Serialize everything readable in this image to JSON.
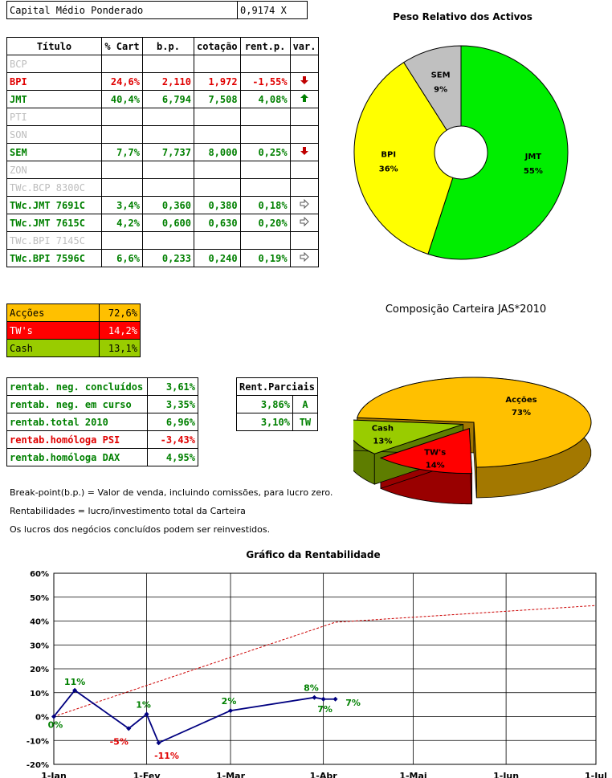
{
  "capital": {
    "label": "Capital Médio Ponderado",
    "value": "0,9174 X"
  },
  "portfolio": {
    "headers": [
      "Título",
      "% Cart",
      "b.p.",
      "cotação",
      "rent.p.",
      "var."
    ],
    "rows": [
      {
        "name": "BCP",
        "state": "inactive",
        "cart": "",
        "bp": "",
        "cot": "",
        "rent": "",
        "var": ""
      },
      {
        "name": "BPI",
        "state": "red",
        "cart": "24,6%",
        "bp": "2,110",
        "cot": "1,972",
        "rent": "-1,55%",
        "var": "down-arrow"
      },
      {
        "name": "JMT",
        "state": "green",
        "cart": "40,4%",
        "bp": "6,794",
        "cot": "7,508",
        "rent": "4,08%",
        "var": "up-arrow"
      },
      {
        "name": "PTI",
        "state": "inactive",
        "cart": "",
        "bp": "",
        "cot": "",
        "rent": "",
        "var": ""
      },
      {
        "name": "SON",
        "state": "inactive",
        "cart": "",
        "bp": "",
        "cot": "",
        "rent": "",
        "var": ""
      },
      {
        "name": "SEM",
        "state": "green",
        "cart": "7,7%",
        "bp": "7,737",
        "cot": "8,000",
        "rent": "0,25%",
        "var": "down-arrow"
      },
      {
        "name": "ZON",
        "state": "inactive",
        "cart": "",
        "bp": "",
        "cot": "",
        "rent": "",
        "var": ""
      },
      {
        "name": "TWc.BCP 8300C",
        "state": "inactive",
        "cart": "",
        "bp": "",
        "cot": "",
        "rent": "",
        "var": ""
      },
      {
        "name": "TWc.JMT 7691C",
        "state": "green",
        "cart": "3,4%",
        "bp": "0,360",
        "cot": "0,380",
        "rent": "0,18%",
        "var": "right-arrow"
      },
      {
        "name": "TWc.JMT 7615C",
        "state": "green",
        "cart": "4,2%",
        "bp": "0,600",
        "cot": "0,630",
        "rent": "0,20%",
        "var": "right-arrow"
      },
      {
        "name": "TWc.BPI 7145C",
        "state": "inactive",
        "cart": "",
        "bp": "",
        "cot": "",
        "rent": "",
        "var": ""
      },
      {
        "name": "TWc.BPI 7596C",
        "state": "green",
        "cart": "6,6%",
        "bp": "0,233",
        "cot": "0,240",
        "rent": "0,19%",
        "var": "right-arrow"
      }
    ]
  },
  "composition": [
    {
      "label": "Acções",
      "value": "72,6%",
      "bg": "#ffc000",
      "fg": "#000000"
    },
    {
      "label": "TW's",
      "value": "14,2%",
      "bg": "#ff0000",
      "fg": "#ffffff"
    },
    {
      "label": "Cash",
      "value": "13,1%",
      "bg": "#99cc00",
      "fg": "#000000"
    }
  ],
  "returns": [
    {
      "label": "rentab. neg. concluídos",
      "value": "3,61%",
      "color": "#008000"
    },
    {
      "label": "rentab. neg. em curso",
      "value": "3,35%",
      "color": "#008000"
    },
    {
      "label": "rentab.total 2010",
      "value": "6,96%",
      "color": "#008000"
    },
    {
      "label": "rentab.homóloga PSI",
      "value": "-3,43%",
      "color": "#e00000"
    },
    {
      "label": "rentab.homóloga DAX",
      "value": "4,95%",
      "color": "#008000"
    }
  ],
  "partial": {
    "header": "Rent.Parciais",
    "rows": [
      {
        "value": "3,86%",
        "tag": "A"
      },
      {
        "value": "3,10%",
        "tag": "TW"
      }
    ]
  },
  "notes": [
    "Break-point(b.p.) = Valor de venda, incluindo comissões, para lucro zero.",
    "Rentabilidades = lucro/investimento total da Carteira",
    "Os lucros dos negócios concluídos podem ser reinvestidos."
  ],
  "chart_data": [
    {
      "type": "pie",
      "title": "Peso Relativo dos Activos",
      "labels": [
        "JMT",
        "BPI",
        "SEM"
      ],
      "values": [
        55,
        36,
        9
      ],
      "data_labels": [
        "55%",
        "36%",
        "9%"
      ],
      "colors": [
        "#00ee00",
        "#ffff00",
        "#c0c0c0"
      ],
      "donut": true
    },
    {
      "type": "pie",
      "title": "Composição Carteira JAS*2010",
      "labels": [
        "Acções",
        "TW's",
        "Cash"
      ],
      "values": [
        73,
        14,
        13
      ],
      "data_labels": [
        "73%",
        "14%",
        "13%"
      ],
      "colors": [
        "#ffc000",
        "#ff0000",
        "#99cc00"
      ],
      "exploded": true,
      "three_d": true
    },
    {
      "type": "line",
      "title": "Gráfico da Rentabilidade",
      "x_ticks": [
        "1-Jan",
        "1-Fev",
        "1-Mar",
        "1-Abr",
        "1-Mai",
        "1-Jun",
        "1-Jul"
      ],
      "y_ticks": [
        "-20%",
        "-10%",
        "0%",
        "10%",
        "20%",
        "30%",
        "40%",
        "50%",
        "60%"
      ],
      "ylim": [
        -20,
        60
      ],
      "grid": true,
      "series": [
        {
          "style": "solid",
          "color": "#000080",
          "points": [
            {
              "x": "2010-01-01",
              "y": 0,
              "label": "0%",
              "label_color": "#008000"
            },
            {
              "x": "2010-01-08",
              "y": 11,
              "label": "11%",
              "label_color": "#008000"
            },
            {
              "x": "2010-01-26",
              "y": -5,
              "label": "-5%",
              "label_color": "#e00000"
            },
            {
              "x": "2010-02-01",
              "y": 1,
              "label": "1%",
              "label_color": "#008000"
            },
            {
              "x": "2010-02-05",
              "y": -11,
              "label": "-11%",
              "label_color": "#e00000"
            },
            {
              "x": "2010-03-01",
              "y": 2.5,
              "label": "2%",
              "label_color": "#008000"
            },
            {
              "x": "2010-03-29",
              "y": 8,
              "label": "8%",
              "label_color": "#008000"
            },
            {
              "x": "2010-04-01",
              "y": 7.3,
              "label": "7%",
              "label_color": "#008000"
            },
            {
              "x": "2010-04-05",
              "y": 7.3,
              "label": "7%",
              "label_color": "#008000"
            }
          ]
        },
        {
          "style": "dashed",
          "color": "#cc0000",
          "points": [
            {
              "x": "2010-01-01",
              "y": 0
            },
            {
              "x": "2010-04-05",
              "y": 39.5
            },
            {
              "x": "2010-07-01",
              "y": 46.5
            }
          ]
        }
      ]
    }
  ]
}
